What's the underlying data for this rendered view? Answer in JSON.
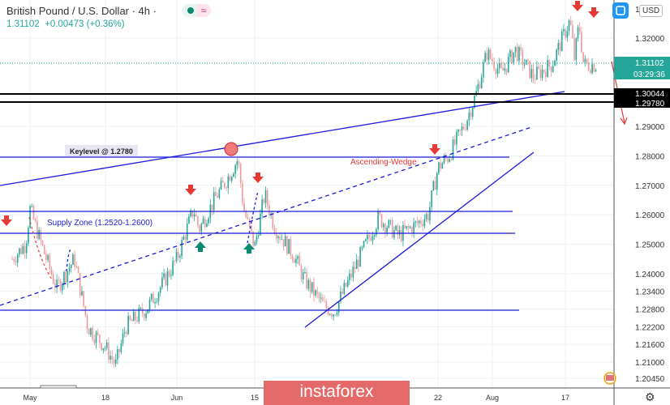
{
  "header": {
    "title": "British Pound / U.S. Dollar · 4h ·",
    "last": "1.31102",
    "change": "+0.00473",
    "change_pct": "(+0.36%)",
    "status_icons": [
      "market-open-dot-icon",
      "wave-icon"
    ]
  },
  "toolbar": {
    "currency": "USD",
    "fullscreen_icon": "fullscreen-icon",
    "settings_icon": "gear-icon"
  },
  "logo": "instaforex",
  "colors": {
    "up": "#26a69a",
    "down": "#ef9a9a",
    "drawing": "#1a1adb",
    "annotation_red": "#e53935",
    "accent_green": "#0b8a73"
  },
  "chart_data": {
    "type": "candlestick",
    "y_ticks": [
      "1.32000",
      "1.29000",
      "1.28000",
      "1.27000",
      "1.26000",
      "1.25000",
      "1.24000",
      "1.23400",
      "1.22800",
      "1.22200",
      "1.21600",
      "1.21000",
      "1.20450"
    ],
    "y_top_partial": "1.",
    "x_ticks": [
      "May",
      "18",
      "Jun",
      "15",
      "22",
      "Aug",
      "17"
    ],
    "price_labels": {
      "last": "1.31102",
      "countdown": "03:29:36",
      "level1": "1.30044",
      "level2": "1.29780"
    },
    "approx_path": [
      [
        "04-27",
        1.245
      ],
      [
        "04-30",
        1.25
      ],
      [
        "05-01",
        1.262
      ],
      [
        "05-04",
        1.248
      ],
      [
        "05-07",
        1.235
      ],
      [
        "05-11",
        1.245
      ],
      [
        "05-14",
        1.222
      ],
      [
        "05-18",
        1.215
      ],
      [
        "05-20",
        1.209
      ],
      [
        "05-22",
        1.222
      ],
      [
        "05-26",
        1.228
      ],
      [
        "05-29",
        1.236
      ],
      [
        "06-01",
        1.245
      ],
      [
        "06-04",
        1.262
      ],
      [
        "06-05",
        1.255
      ],
      [
        "06-08",
        1.266
      ],
      [
        "06-10",
        1.272
      ],
      [
        "06-12",
        1.279
      ],
      [
        "06-13",
        1.262
      ],
      [
        "06-15",
        1.249
      ],
      [
        "06-17",
        1.267
      ],
      [
        "06-19",
        1.256
      ],
      [
        "06-23",
        1.246
      ],
      [
        "06-25",
        1.238
      ],
      [
        "06-29",
        1.229
      ],
      [
        "07-01",
        1.227
      ],
      [
        "07-06",
        1.245
      ],
      [
        "07-10",
        1.259
      ],
      [
        "07-14",
        1.253
      ],
      [
        "07-17",
        1.256
      ],
      [
        "07-20",
        1.26
      ],
      [
        "07-22",
        1.276
      ],
      [
        "07-24",
        1.28
      ],
      [
        "07-27",
        1.291
      ],
      [
        "07-29",
        1.301
      ],
      [
        "07-31",
        1.315
      ],
      [
        "08-03",
        1.308
      ],
      [
        "08-06",
        1.316
      ],
      [
        "08-10",
        1.307
      ],
      [
        "08-14",
        1.311
      ],
      [
        "08-18",
        1.326
      ],
      [
        "08-19",
        1.313
      ],
      [
        "08-20",
        1.325
      ],
      [
        "08-21",
        1.311
      ],
      [
        "08-24",
        1.311
      ]
    ],
    "annotations": {
      "keylevel": "Keylevel @ 1.2780",
      "supply": "Supply Zone (1.2520-1.2600)",
      "wedge": "Ascending-Wedge"
    },
    "grid": true
  }
}
